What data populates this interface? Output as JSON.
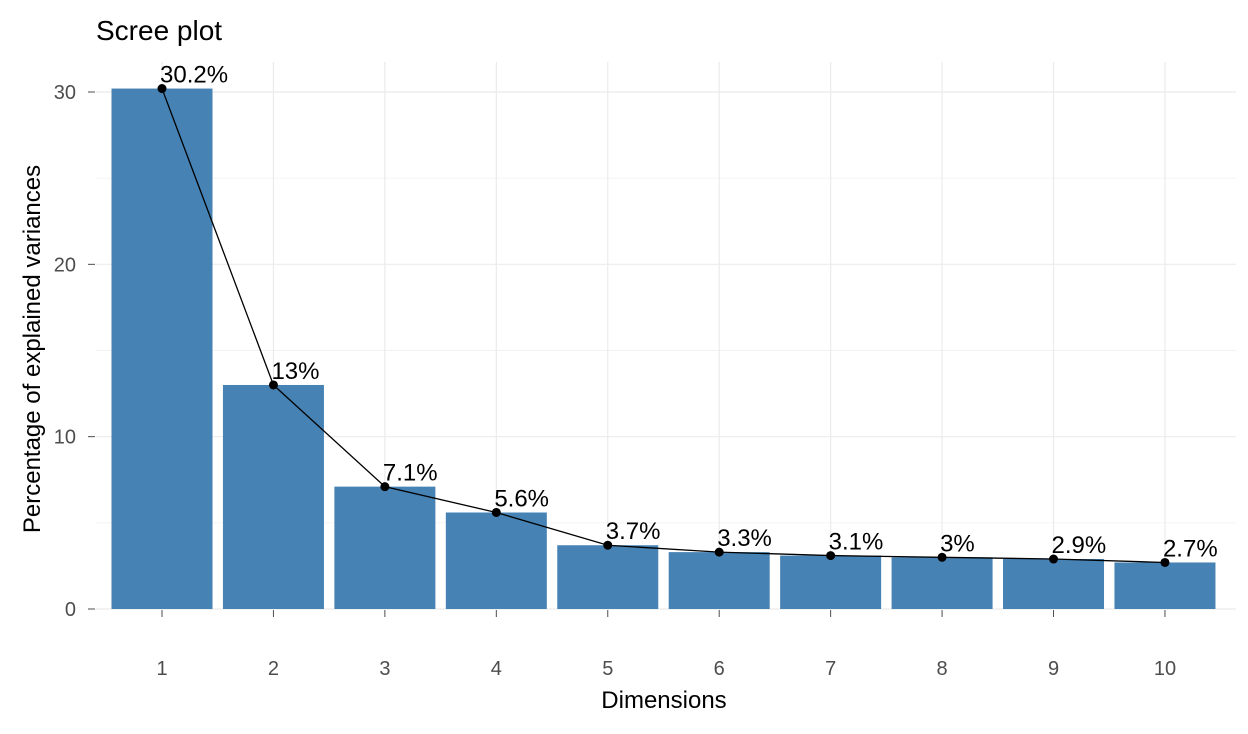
{
  "chart_data": {
    "type": "bar",
    "title": "Scree plot",
    "xlabel": "Dimensions",
    "ylabel": "Percentage of explained variances",
    "categories": [
      "1",
      "2",
      "3",
      "4",
      "5",
      "6",
      "7",
      "8",
      "9",
      "10"
    ],
    "values": [
      30.2,
      13.0,
      7.1,
      5.6,
      3.7,
      3.3,
      3.1,
      3.0,
      2.9,
      2.7
    ],
    "data_labels": [
      "30.2%",
      "13%",
      "7.1%",
      "5.6%",
      "3.7%",
      "3.3%",
      "3.1%",
      "3%",
      "2.9%",
      "2.7%"
    ],
    "y_ticks": [
      0,
      10,
      20,
      30
    ],
    "ylim": [
      0,
      31.7
    ],
    "bar_color": "#4682b4",
    "line_color": "#000000",
    "grid": true,
    "legend": "none"
  }
}
